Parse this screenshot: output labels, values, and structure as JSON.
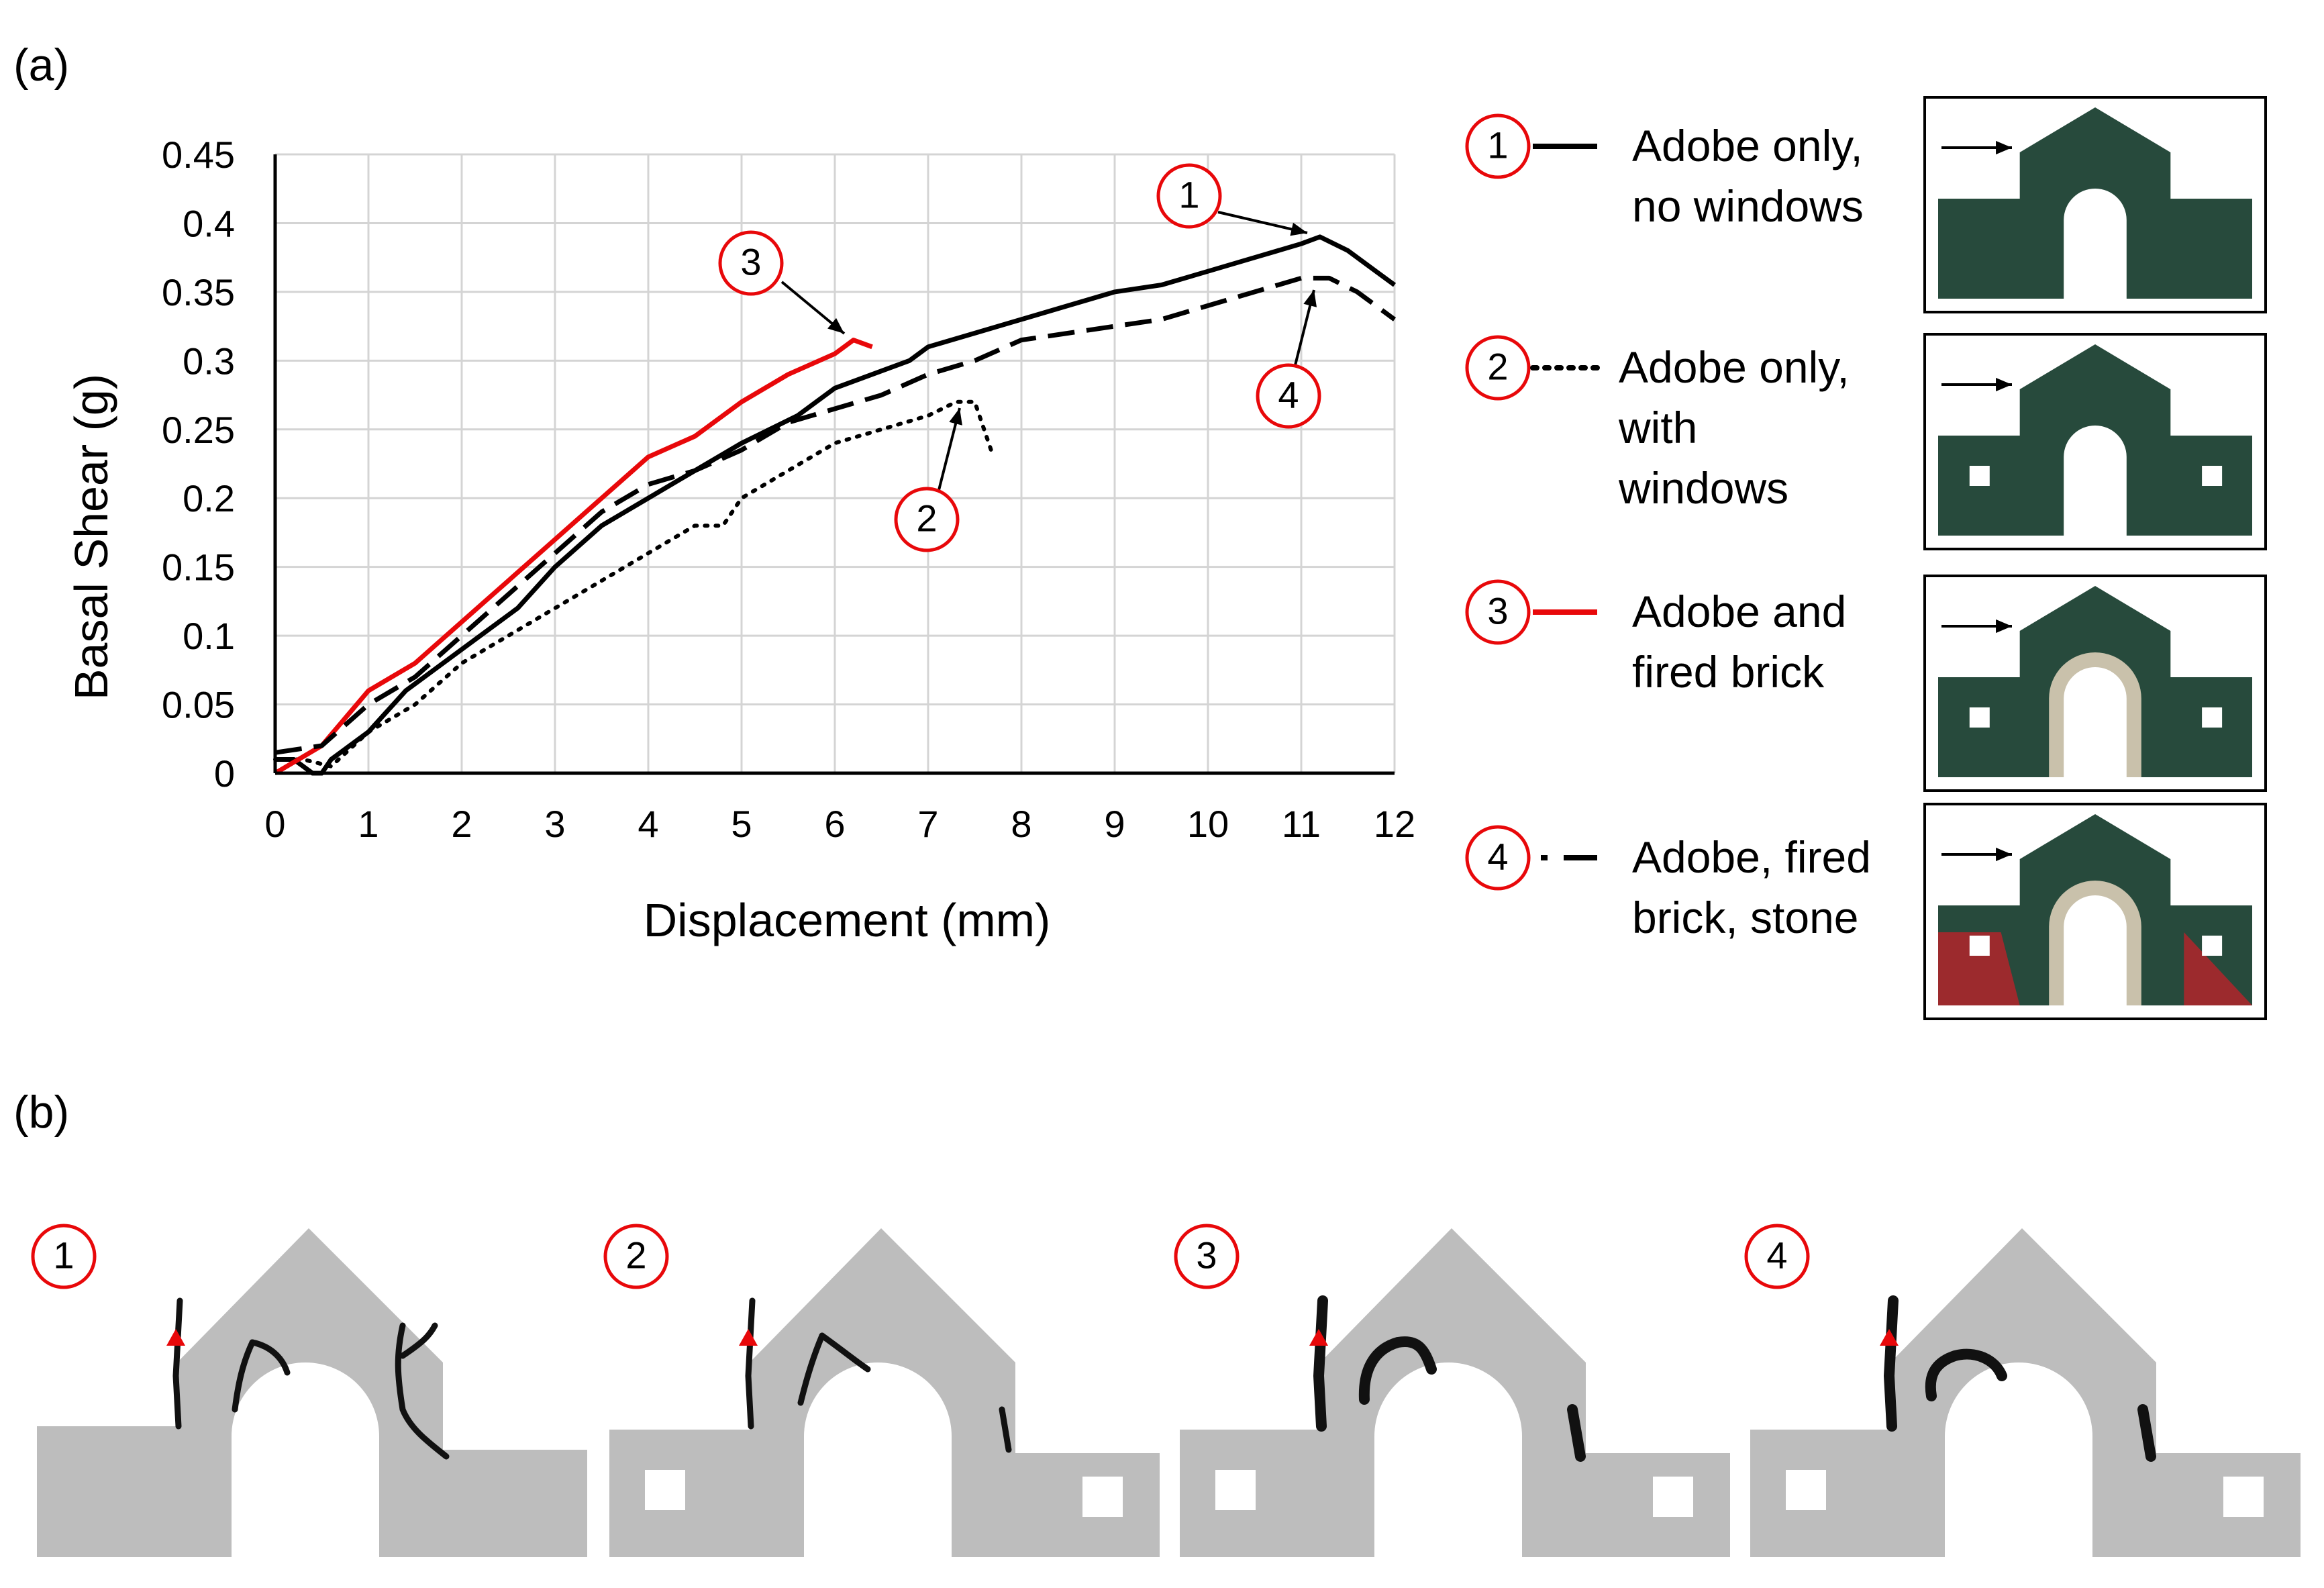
{
  "panel_a_label": "(a)",
  "panel_b_label": "(b)",
  "colors": {
    "red": "#e8080a",
    "black": "#000000",
    "grid": "#d4d4d4",
    "wall_green": "#274a3c",
    "brick": "#c9c1ab",
    "stone": "#9c2a2d",
    "wall_gray": "#bdbdbd",
    "crack_marker": "#e8080a"
  },
  "chart_data": {
    "type": "line",
    "xlabel": "Displacement (mm)",
    "ylabel": "Basal Shear (g)",
    "xlim": [
      0,
      12
    ],
    "ylim": [
      0,
      0.45
    ],
    "xticks": [
      "0",
      "1",
      "2",
      "3",
      "4",
      "5",
      "6",
      "7",
      "8",
      "9",
      "10",
      "11",
      "12"
    ],
    "yticks": [
      "0",
      "0.05",
      "0.1",
      "0.15",
      "0.2",
      "0.25",
      "0.3",
      "0.35",
      "0.4",
      "0.45"
    ],
    "grid": true,
    "series": [
      {
        "name": "Adobe only, no windows",
        "marker": "1",
        "style": "solid",
        "color": "#000000",
        "x": [
          0,
          0.2,
          0.4,
          0.5,
          0.6,
          0.8,
          1,
          1.4,
          1.8,
          2.2,
          2.6,
          3,
          3.5,
          4,
          4.5,
          5,
          5.3,
          5.6,
          6,
          6.4,
          6.8,
          7,
          7.5,
          8,
          8.5,
          9,
          9.5,
          10,
          10.5,
          11,
          11.2,
          11.5,
          11.8,
          12
        ],
        "y": [
          0.01,
          0.01,
          0,
          0,
          0.01,
          0.02,
          0.03,
          0.06,
          0.08,
          0.1,
          0.12,
          0.15,
          0.18,
          0.2,
          0.22,
          0.24,
          0.25,
          0.26,
          0.28,
          0.29,
          0.3,
          0.31,
          0.32,
          0.33,
          0.34,
          0.35,
          0.355,
          0.365,
          0.375,
          0.385,
          0.39,
          0.38,
          0.365,
          0.355
        ]
      },
      {
        "name": "Adobe only, with windows",
        "marker": "2",
        "style": "dotted",
        "color": "#000000",
        "x": [
          0,
          0.3,
          0.6,
          1,
          1.5,
          2,
          2.5,
          3,
          3.5,
          4,
          4.5,
          4.8,
          5,
          5.5,
          6,
          6.5,
          7,
          7.3,
          7.5,
          7.6,
          7.7
        ],
        "y": [
          0.01,
          0.01,
          0.005,
          0.03,
          0.05,
          0.08,
          0.1,
          0.12,
          0.14,
          0.16,
          0.18,
          0.18,
          0.2,
          0.22,
          0.24,
          0.25,
          0.26,
          0.27,
          0.27,
          0.25,
          0.23
        ]
      },
      {
        "name": "Adobe and fired brick",
        "marker": "3",
        "style": "solid",
        "color": "#e8080a",
        "x": [
          0,
          0.5,
          1,
          1.5,
          2,
          2.5,
          3,
          3.5,
          4,
          4.5,
          5,
          5.5,
          6,
          6.2,
          6.4
        ],
        "y": [
          0,
          0.02,
          0.06,
          0.08,
          0.11,
          0.14,
          0.17,
          0.2,
          0.23,
          0.245,
          0.27,
          0.29,
          0.305,
          0.315,
          0.31
        ]
      },
      {
        "name": "Adobe, fired brick, stone",
        "marker": "4",
        "style": "dashed",
        "color": "#000000",
        "x": [
          0,
          0.5,
          1,
          1.5,
          2,
          2.5,
          3,
          3.5,
          4,
          4.5,
          5,
          5.5,
          6,
          6.5,
          7,
          7.5,
          8,
          8.5,
          9,
          9.5,
          10,
          10.5,
          11,
          11.3,
          11.6,
          12
        ],
        "y": [
          0.015,
          0.02,
          0.05,
          0.07,
          0.1,
          0.13,
          0.16,
          0.19,
          0.21,
          0.22,
          0.235,
          0.255,
          0.265,
          0.275,
          0.29,
          0.3,
          0.315,
          0.32,
          0.325,
          0.33,
          0.34,
          0.35,
          0.36,
          0.36,
          0.35,
          0.33
        ]
      }
    ],
    "annotations": [
      "1",
      "2",
      "3",
      "4"
    ]
  },
  "legend": [
    {
      "num": "1",
      "lines": [
        "Adobe only,",
        "no windows"
      ],
      "style": "solid",
      "color": "#000000"
    },
    {
      "num": "2",
      "lines": [
        "Adobe only,",
        "with",
        "windows"
      ],
      "style": "dotted",
      "color": "#000000"
    },
    {
      "num": "3",
      "lines": [
        "Adobe and",
        "fired brick"
      ],
      "style": "solid",
      "color": "#e8080a"
    },
    {
      "num": "4",
      "lines": [
        "Adobe, fired",
        "brick, stone"
      ],
      "style": "dashed",
      "color": "#000000"
    }
  ],
  "panel_b_numbers": [
    "1",
    "2",
    "3",
    "4"
  ]
}
